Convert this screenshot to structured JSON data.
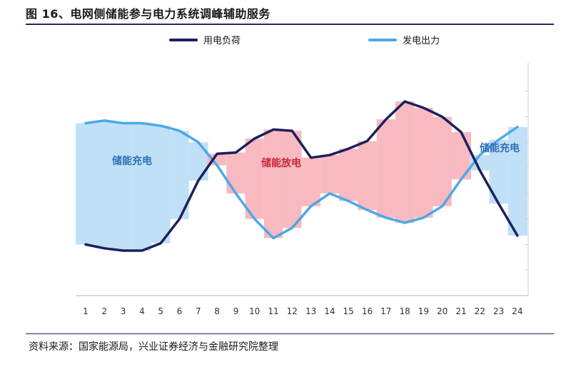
{
  "header": {
    "title": "图 16、电网侧储能参与电力系统调峰辅助服务"
  },
  "footer": {
    "source": "资料来源：国家能源局，兴业证券经济与金融研究院整理"
  },
  "legend": {
    "load_label": "用电负荷",
    "gen_label": "发电出力",
    "load_color": "#1c1f5e",
    "gen_color": "#4aa9e8"
  },
  "colors": {
    "charge_fill": "#bfe0f7",
    "discharge_fill": "#f9b9c1",
    "charge_text": "#2d6fb7",
    "discharge_text": "#c62834"
  },
  "annotations": {
    "charge_left": "储能充电",
    "discharge": "储能放电",
    "charge_right": "储能充电"
  },
  "chart_data": {
    "type": "line",
    "x": [
      1,
      2,
      3,
      4,
      5,
      6,
      7,
      8,
      9,
      10,
      11,
      12,
      13,
      14,
      15,
      16,
      17,
      18,
      19,
      20,
      21,
      22,
      23,
      24
    ],
    "series": [
      {
        "name": "用电负荷",
        "values": [
          20,
          18.5,
          17.6,
          17.6,
          20.5,
          30,
          45,
          55.5,
          56,
          61.5,
          65,
          64.5,
          54,
          55,
          57.5,
          60.5,
          69,
          76,
          73.5,
          70,
          64,
          49,
          36,
          23.5
        ]
      },
      {
        "name": "发电出力",
        "values": [
          67.5,
          68.5,
          67.5,
          67.5,
          66.5,
          64.5,
          60,
          51,
          40,
          30,
          22.5,
          26.5,
          35,
          40,
          37,
          33.5,
          30.5,
          28.5,
          30.5,
          35,
          45.5,
          55,
          61,
          66
        ]
      }
    ],
    "ylim": [
      0,
      90
    ],
    "regions": [
      {
        "label": "储能充电",
        "type": "charge",
        "from": 1,
        "to": 7
      },
      {
        "label": "储能放电",
        "type": "discharge",
        "from": 8,
        "to": 21
      },
      {
        "label": "储能充电",
        "type": "charge",
        "from": 22,
        "to": 24
      }
    ],
    "grid": false
  }
}
